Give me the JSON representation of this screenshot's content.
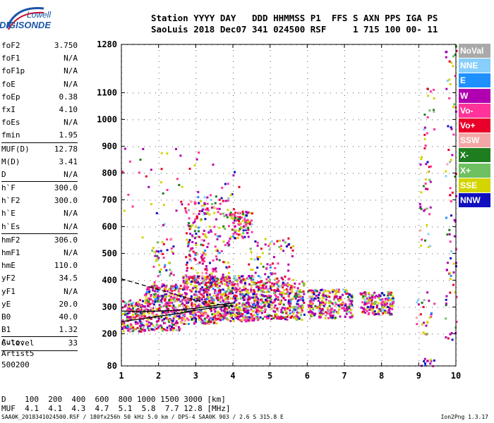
{
  "logo": {
    "line1": "Lowell",
    "line2": "DIGISONDE"
  },
  "header": {
    "line1": "Station YYYY DAY   DDD HHMMSS P1  FFS S AXN PPS IGA PS",
    "line2": "SaoLuis 2018 Dec07 341 024500 RSF     1 715 100 00- 11"
  },
  "params": [
    {
      "k": "foF2",
      "v": "3.750"
    },
    {
      "k": "foF1",
      "v": "N/A"
    },
    {
      "k": "foF1p",
      "v": "N/A"
    },
    {
      "k": "foE",
      "v": "N/A"
    },
    {
      "k": "foEp",
      "v": "0.38"
    },
    {
      "k": "fxI",
      "v": "4.10"
    },
    {
      "k": "foEs",
      "v": "N/A"
    },
    {
      "k": "fmin",
      "v": "1.95"
    },
    {
      "k": "MUF(D)",
      "v": "12.78"
    },
    {
      "k": "M(D)",
      "v": "3.41"
    },
    {
      "k": "D",
      "v": "N/A"
    },
    {
      "k": "h`F",
      "v": "300.0"
    },
    {
      "k": "h`F2",
      "v": "300.0"
    },
    {
      "k": "h`E",
      "v": "N/A"
    },
    {
      "k": "h`Es",
      "v": "N/A"
    },
    {
      "k": "hmF2",
      "v": "306.0"
    },
    {
      "k": "hmF1",
      "v": "N/A"
    },
    {
      "k": "hmE",
      "v": "110.0"
    },
    {
      "k": "yF2",
      "v": "34.5"
    },
    {
      "k": "yF1",
      "v": "N/A"
    },
    {
      "k": "yE",
      "v": "20.0"
    },
    {
      "k": "B0",
      "v": "40.0"
    },
    {
      "k": "B1",
      "v": "1.32"
    },
    {
      "k": "C-level",
      "v": "33"
    }
  ],
  "auto": [
    "Auto:",
    "Artist5",
    "500200"
  ],
  "legend": [
    {
      "label": "NoVal",
      "color": "#a9a9a9"
    },
    {
      "label": "NNE",
      "color": "#87cefa"
    },
    {
      "label": "E",
      "color": "#1e90ff"
    },
    {
      "label": "W",
      "color": "#b000b0"
    },
    {
      "label": "Vo-",
      "color": "#ff3399"
    },
    {
      "label": "Vo+",
      "color": "#e8002a"
    },
    {
      "label": "SSW",
      "color": "#f4a6a6"
    },
    {
      "label": "X-",
      "color": "#1e7d1e"
    },
    {
      "label": "X+",
      "color": "#6fc060"
    },
    {
      "label": "SSE",
      "color": "#d4d400"
    },
    {
      "label": "NNW",
      "color": "#1010c0"
    }
  ],
  "footer": {
    "line1": "D    100  200  400  600  800 1000 1500 3000 [km]",
    "line2": "MUF  4.1  4.1  4.3  4.7  5.1  5.8  7.7 12.8 [MHz]",
    "source": "SAA0K_2018341024500.RSF / 180fx256h 50 kHz 5.0 km / DPS-4 SAA0K 903 / 2.6 S 315.8 E",
    "version": "Ion2Png 1.3.17"
  },
  "chart_data": {
    "type": "scatter",
    "x_ticks": [
      1,
      2,
      3,
      4,
      5,
      6,
      7,
      8,
      9,
      10
    ],
    "y_ticks": [
      80,
      200,
      300,
      400,
      500,
      600,
      700,
      800,
      900,
      1000,
      1100,
      1280
    ],
    "xlim": [
      1,
      10
    ],
    "ylim": [
      80,
      1280
    ],
    "grid": true,
    "legend_position": "right",
    "trace_lines": [
      {
        "points": [
          [
            1,
            285
          ],
          [
            1.5,
            282
          ],
          [
            2,
            285
          ],
          [
            2.5,
            288
          ],
          [
            3,
            295
          ],
          [
            3.5,
            305
          ],
          [
            4,
            315
          ]
        ],
        "style": "solid"
      },
      {
        "points": [
          [
            1,
            245
          ],
          [
            1.5,
            255
          ],
          [
            2,
            265
          ],
          [
            2.5,
            275
          ],
          [
            3,
            288
          ],
          [
            3.5,
            298
          ],
          [
            4,
            305
          ]
        ],
        "style": "solid"
      },
      {
        "points": [
          [
            1,
            405
          ],
          [
            1.5,
            385
          ],
          [
            2,
            365
          ],
          [
            2.5,
            345
          ],
          [
            3,
            325
          ],
          [
            3.5,
            312
          ],
          [
            4,
            300
          ]
        ],
        "style": "dashed"
      }
    ],
    "echo_regions": [
      {
        "x": [
          1.0,
          1.6
        ],
        "y": [
          210,
          330
        ],
        "n": 180
      },
      {
        "x": [
          1.6,
          2.6
        ],
        "y": [
          215,
          390
        ],
        "n": 360
      },
      {
        "x": [
          2.6,
          3.6
        ],
        "y": [
          240,
          420
        ],
        "n": 420
      },
      {
        "x": [
          3.6,
          4.6
        ],
        "y": [
          250,
          420
        ],
        "n": 420
      },
      {
        "x": [
          4.6,
          5.9
        ],
        "y": [
          255,
          400
        ],
        "n": 360
      },
      {
        "x": [
          6.0,
          7.2
        ],
        "y": [
          260,
          370
        ],
        "n": 260
      },
      {
        "x": [
          7.4,
          8.3
        ],
        "y": [
          275,
          360
        ],
        "n": 180
      },
      {
        "x": [
          2.7,
          3.9
        ],
        "y": [
          400,
          720
        ],
        "n": 220
      },
      {
        "x": [
          3.9,
          4.5
        ],
        "y": [
          560,
          660
        ],
        "n": 100
      },
      {
        "x": [
          1.8,
          2.4
        ],
        "y": [
          300,
          560
        ],
        "n": 70
      },
      {
        "x": [
          4.4,
          5.6
        ],
        "y": [
          400,
          560
        ],
        "n": 80
      },
      {
        "x": [
          1.0,
          4.2
        ],
        "y": [
          560,
          900
        ],
        "n": 60
      },
      {
        "x": [
          9.0,
          9.3
        ],
        "y": [
          520,
          900
        ],
        "n": 35
      },
      {
        "x": [
          9.7,
          10.0
        ],
        "y": [
          180,
          1280
        ],
        "n": 80
      },
      {
        "x": [
          8.9,
          9.4
        ],
        "y": [
          200,
          360
        ],
        "n": 25
      },
      {
        "x": [
          9.1,
          9.4
        ],
        "y": [
          900,
          1120
        ],
        "n": 18
      },
      {
        "x": [
          9.0,
          9.4
        ],
        "y": [
          80,
          110
        ],
        "n": 12
      }
    ]
  }
}
